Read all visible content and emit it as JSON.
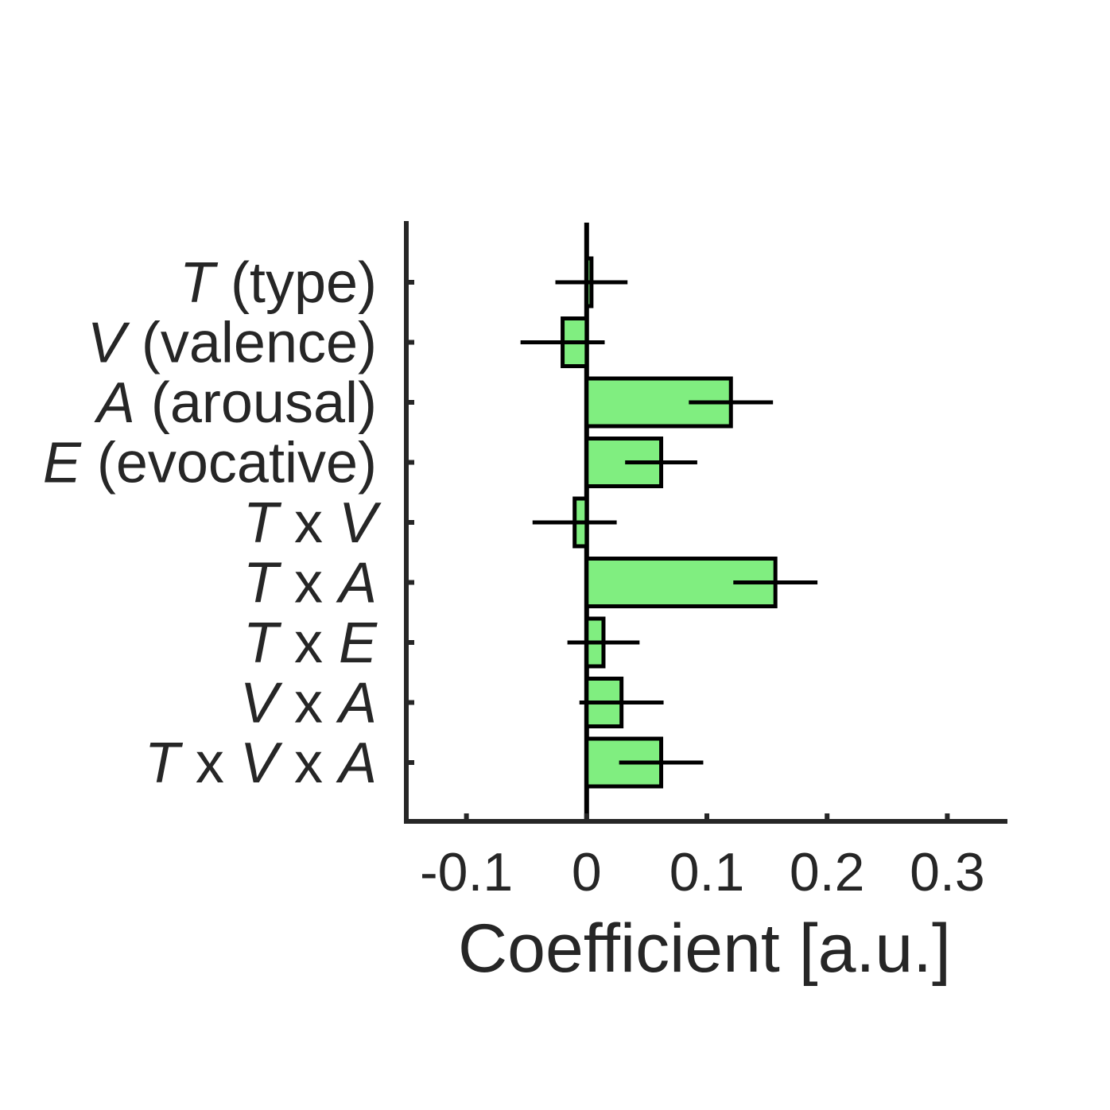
{
  "chart_data": {
    "type": "bar",
    "orientation": "horizontal",
    "categories": [
      [
        {
          "t": "T",
          "i": true
        },
        {
          "t": " (type)",
          "i": false
        }
      ],
      [
        {
          "t": "V",
          "i": true
        },
        {
          "t": " (valence)",
          "i": false
        }
      ],
      [
        {
          "t": "A",
          "i": true
        },
        {
          "t": " (arousal)",
          "i": false
        }
      ],
      [
        {
          "t": "E",
          "i": true
        },
        {
          "t": " (evocative)",
          "i": false
        }
      ],
      [
        {
          "t": "T",
          "i": true
        },
        {
          "t": " x ",
          "i": false
        },
        {
          "t": "V",
          "i": true
        }
      ],
      [
        {
          "t": "T",
          "i": true
        },
        {
          "t": " x ",
          "i": false
        },
        {
          "t": "A",
          "i": true
        }
      ],
      [
        {
          "t": "T",
          "i": true
        },
        {
          "t": " x ",
          "i": false
        },
        {
          "t": "E",
          "i": true
        }
      ],
      [
        {
          "t": "V",
          "i": true
        },
        {
          "t": " x ",
          "i": false
        },
        {
          "t": "A",
          "i": true
        }
      ],
      [
        {
          "t": "T",
          "i": true
        },
        {
          "t": " x ",
          "i": false
        },
        {
          "t": "V",
          "i": true
        },
        {
          "t": " x ",
          "i": false
        },
        {
          "t": "A",
          "i": true
        }
      ]
    ],
    "values": [
      0.004,
      -0.02,
      0.12,
      0.062,
      -0.01,
      0.157,
      0.014,
      0.029,
      0.062
    ],
    "errors": [
      0.03,
      0.035,
      0.035,
      0.03,
      0.035,
      0.035,
      0.03,
      0.035,
      0.035
    ],
    "xlabel": "Coefficient [a.u.]",
    "xlim": [
      -0.15,
      0.35
    ],
    "xticks": [
      -0.1,
      0,
      0.1,
      0.2,
      0.3
    ],
    "xtick_labels": [
      "-0.1",
      "0",
      "0.1",
      "0.2",
      "0.3"
    ],
    "grid": false,
    "colors": {
      "bar": "#80ee80",
      "edge": "#000000",
      "axis": "#262626",
      "text": "#262626"
    }
  }
}
